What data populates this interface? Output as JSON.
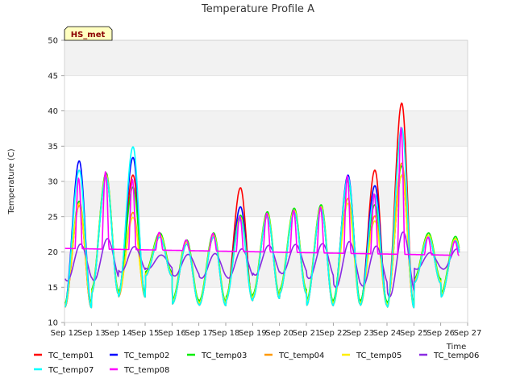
{
  "chart_data": {
    "type": "line",
    "title": "Temperature Profile A",
    "xlabel": "Time",
    "ylabel": "Temperature (C)",
    "badge": "HS_met",
    "ylim": [
      10,
      50
    ],
    "xlim": [
      12,
      27
    ],
    "yticks": [
      10,
      15,
      20,
      25,
      30,
      35,
      40,
      45,
      50
    ],
    "xticks": [
      "Sep 12",
      "Sep 13",
      "Sep 14",
      "Sep 15",
      "Sep 16",
      "Sep 17",
      "Sep 18",
      "Sep 19",
      "Sep 20",
      "Sep 21",
      "Sep 22",
      "Sep 23",
      "Sep 24",
      "Sep 25",
      "Sep 26",
      "Sep 27"
    ],
    "grid": true,
    "legend_position": "bottom",
    "day_min": [
      12.5,
      14.5,
      14.0,
      17.0,
      13.0,
      12.8,
      13.5,
      13.8,
      14.5,
      12.8,
      13.0,
      12.8,
      12.5,
      16.0,
      14.0
    ],
    "day_max": [
      27.0,
      31.0,
      24.0,
      22.5,
      21.5,
      22.5,
      25.0,
      25.5,
      26.0,
      26.5,
      31.0,
      28.5,
      38.0,
      22.5,
      22.0
    ],
    "series": [
      {
        "name": "TC_temp01",
        "color": "#ff0000",
        "peak_offset": [
          0,
          0,
          7.3,
          0,
          0,
          0,
          4.5,
          0,
          0,
          0,
          0,
          3.5,
          3.5,
          0,
          0
        ]
      },
      {
        "name": "TC_temp02",
        "color": "#0000ff",
        "peak_offset": [
          6,
          0,
          9.5,
          0,
          0,
          0,
          1.5,
          0,
          0,
          0,
          0,
          1.0,
          -7,
          0,
          0
        ]
      },
      {
        "name": "TC_temp03",
        "color": "#00ee00",
        "peak_offset": [
          0,
          0,
          5,
          0,
          0,
          0,
          0,
          0,
          0,
          0,
          -1,
          -2,
          -6,
          0,
          0
        ]
      },
      {
        "name": "TC_temp04",
        "color": "#ff9900",
        "peak_offset": [
          0,
          0,
          2,
          0,
          0,
          0,
          0,
          0,
          0,
          0,
          -3,
          -3,
          -5,
          0,
          0
        ]
      },
      {
        "name": "TC_temp05",
        "color": "#ffee00",
        "peak_offset": [
          0,
          0,
          1,
          0,
          0,
          0,
          0,
          0,
          0,
          0,
          -4,
          -4,
          -7,
          0,
          0
        ]
      },
      {
        "name": "TC_temp06",
        "color": "#8a2be2",
        "peak_offset": [
          0,
          0,
          0,
          0,
          0,
          0,
          0,
          0,
          0,
          0,
          0,
          0,
          0,
          0,
          0
        ]
      },
      {
        "name": "TC_temp07",
        "color": "#00ffff",
        "peak_offset": [
          5,
          0,
          11.3,
          0,
          0,
          0,
          0,
          0,
          0,
          0,
          0,
          0,
          0,
          0,
          0
        ]
      },
      {
        "name": "TC_temp08",
        "color": "#ff00ff",
        "peak_offset": [
          3,
          0,
          6,
          0,
          0,
          0,
          0,
          0,
          0,
          0,
          0,
          0,
          0,
          0,
          0
        ]
      }
    ]
  }
}
